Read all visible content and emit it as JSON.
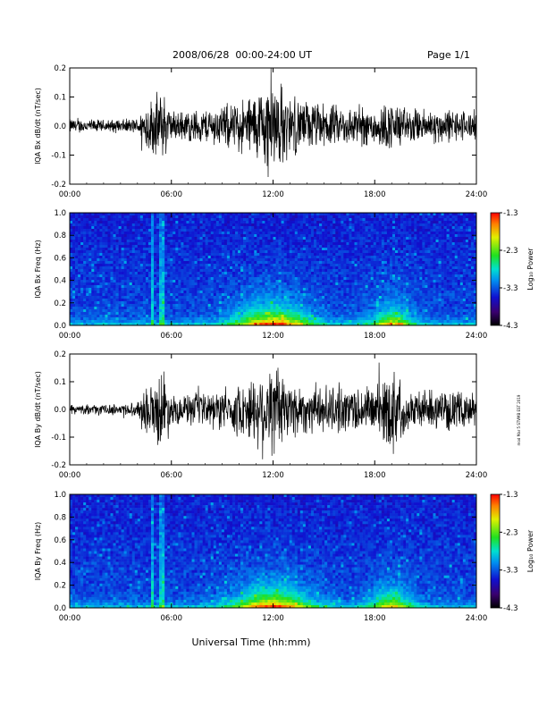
{
  "header": {
    "title": "2008/06/28  00:00-24:00 UT",
    "page": "Page 1/1"
  },
  "footer": {
    "xlabel": "Universal Time (hh:mm)",
    "side_note": "mod Mar 5 STVMB EST 2019"
  },
  "chart_data": [
    {
      "type": "line",
      "ylabel": "IQA Bx dB/dt (nT/sec)",
      "x_ticks": [
        "00:00",
        "06:00",
        "12:00",
        "18:00",
        "24:00"
      ],
      "y_ticks": [
        "0.2",
        "0.1",
        "0.0",
        "-0.1",
        "-0.2"
      ],
      "xlim": [
        0,
        24
      ],
      "ylim": [
        -0.2,
        0.2
      ],
      "series": [
        {
          "x": [
            0,
            2,
            4,
            4.5,
            5,
            5.5,
            6,
            8,
            10,
            11,
            11.5,
            12,
            12.5,
            13,
            14,
            16,
            18,
            19,
            20,
            22,
            24
          ],
          "amplitude": [
            0.03,
            0.025,
            0.03,
            0.1,
            0.12,
            0.15,
            0.06,
            0.07,
            0.1,
            0.14,
            0.18,
            0.2,
            0.17,
            0.12,
            0.1,
            0.08,
            0.08,
            0.1,
            0.07,
            0.07,
            0.06
          ],
          "color": "#000000"
        }
      ]
    },
    {
      "type": "heatmap",
      "ylabel": "IQA Bx Freq (Hz)",
      "x_ticks": [
        "00:00",
        "06:00",
        "12:00",
        "18:00",
        "24:00"
      ],
      "y_ticks": [
        "1.0",
        "0.8",
        "0.6",
        "0.4",
        "0.2",
        "0.0"
      ],
      "xlim": [
        0,
        24
      ],
      "ylim": [
        0,
        1.0
      ],
      "colorbar": {
        "label": "Log₁₀ Power",
        "ticks": [
          "-1.3",
          "-2.3",
          "-3.3",
          "-4.3"
        ],
        "range": [
          -4.3,
          -1.3
        ]
      }
    },
    {
      "type": "line",
      "ylabel": "IQA By dB/dt (nT/sec)",
      "x_ticks": [
        "00:00",
        "06:00",
        "12:00",
        "18:00",
        "24:00"
      ],
      "y_ticks": [
        "0.2",
        "0.1",
        "0.0",
        "-0.1",
        "-0.2"
      ],
      "xlim": [
        0,
        24
      ],
      "ylim": [
        -0.2,
        0.2
      ],
      "series": [
        {
          "x": [
            0,
            2,
            4,
            4.5,
            5,
            5.5,
            6,
            8,
            10,
            11,
            11.5,
            12,
            12.5,
            13,
            14,
            16,
            18,
            19,
            20,
            22,
            24
          ],
          "amplitude": [
            0.02,
            0.02,
            0.03,
            0.12,
            0.1,
            0.2,
            0.06,
            0.07,
            0.1,
            0.15,
            0.2,
            0.2,
            0.18,
            0.13,
            0.1,
            0.1,
            0.1,
            0.19,
            0.08,
            0.08,
            0.07
          ],
          "color": "#000000"
        }
      ]
    },
    {
      "type": "heatmap",
      "ylabel": "IQA By Freq (Hz)",
      "x_ticks": [
        "00:00",
        "06:00",
        "12:00",
        "18:00",
        "24:00"
      ],
      "y_ticks": [
        "1.0",
        "0.8",
        "0.6",
        "0.4",
        "0.2",
        "0.0"
      ],
      "xlim": [
        0,
        24
      ],
      "ylim": [
        0,
        1.0
      ],
      "colorbar": {
        "label": "Log₁₀ Power",
        "ticks": [
          "-1.3",
          "-2.3",
          "-3.3",
          "-4.3"
        ],
        "range": [
          -4.3,
          -1.3
        ]
      }
    }
  ]
}
